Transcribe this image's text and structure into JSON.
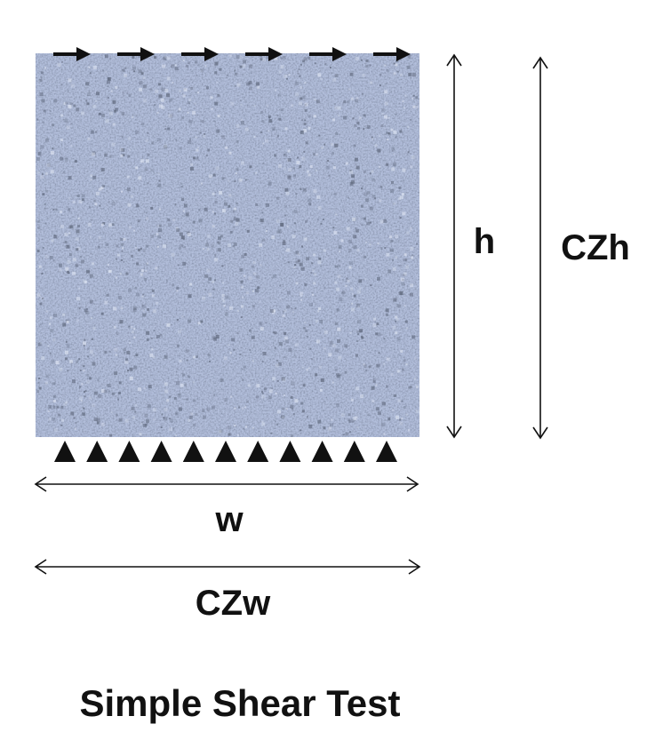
{
  "diagram": {
    "labels": {
      "height": "h",
      "width": "w",
      "cz_height": "CZh",
      "cz_width": "CZw",
      "caption": "Simple Shear Test"
    },
    "load": {
      "shear_arrow_count": 6,
      "support_count": 11
    },
    "colors": {
      "specimen_base": "#b3bfdc",
      "specimen_dark": "#5b6478",
      "specimen_light": "#dde4f2",
      "ink": "#111111"
    }
  }
}
